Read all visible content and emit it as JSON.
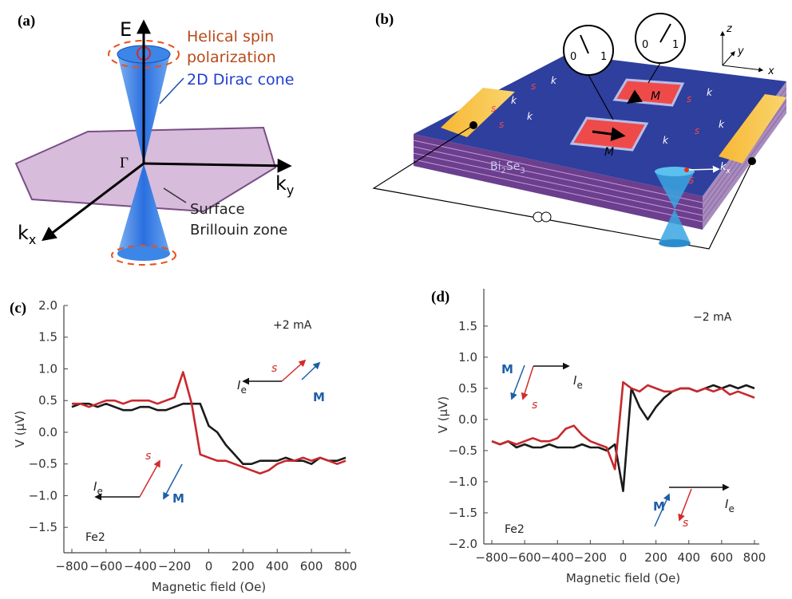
{
  "panel_a": {
    "label": "(a)",
    "energy_axis": "E",
    "spin_label": [
      "Helical spin",
      "polarization"
    ],
    "cone_label": "2D Dirac cone",
    "gamma": "Γ",
    "ky": {
      "text": "k",
      "sub": "y"
    },
    "kx": {
      "text": "k",
      "sub": "x"
    },
    "zone_label": [
      "Surface",
      "Brillouin zone"
    ]
  },
  "panel_b": {
    "label": "(b)",
    "dial_ticks": [
      "0",
      "1",
      "0",
      "1"
    ],
    "axes": [
      "z",
      "y",
      "x"
    ],
    "magnet": [
      "M",
      "M"
    ],
    "material": [
      "Bi",
      "2",
      "Se",
      "3"
    ],
    "k": "k",
    "s": "s",
    "kx": {
      "text": "k",
      "sub": "x"
    }
  },
  "chart_data": [
    {
      "type": "line",
      "panel_label": "(c)",
      "xlabel": "Magnetic field (Oe)",
      "ylabel": "V (μV)",
      "annotations": [
        "+2 mA",
        "Fe2",
        {
          "text": "I",
          "sub": "e"
        },
        "s",
        "M",
        {
          "text": "I",
          "sub": "e"
        },
        "s",
        "M"
      ],
      "x": [
        -800,
        -750,
        -700,
        -650,
        -600,
        -550,
        -500,
        -450,
        -400,
        -350,
        -300,
        -250,
        -200,
        -150,
        -100,
        -50,
        0,
        50,
        100,
        150,
        200,
        250,
        300,
        350,
        400,
        450,
        500,
        550,
        600,
        650,
        700,
        750,
        800
      ],
      "series": [
        {
          "color": "#1a1a1a",
          "values": [
            0.4,
            0.45,
            0.45,
            0.4,
            0.45,
            0.4,
            0.35,
            0.35,
            0.4,
            0.4,
            0.35,
            0.35,
            0.4,
            0.45,
            0.45,
            0.45,
            0.1,
            0.0,
            -0.2,
            -0.35,
            -0.5,
            -0.5,
            -0.45,
            -0.45,
            -0.45,
            -0.4,
            -0.45,
            -0.45,
            -0.5,
            -0.4,
            -0.45,
            -0.45,
            -0.4
          ]
        },
        {
          "color": "#c8282d",
          "values": [
            0.45,
            0.45,
            0.4,
            0.45,
            0.5,
            0.5,
            0.45,
            0.5,
            0.5,
            0.5,
            0.45,
            0.5,
            0.55,
            0.95,
            0.45,
            -0.35,
            -0.4,
            -0.45,
            -0.45,
            -0.5,
            -0.55,
            -0.6,
            -0.65,
            -0.6,
            -0.5,
            -0.45,
            -0.45,
            -0.4,
            -0.45,
            -0.4,
            -0.45,
            -0.5,
            -0.45
          ]
        }
      ],
      "xlim": [
        -800,
        800
      ],
      "xticks": [
        {
          "value": -800,
          "label": "−800"
        },
        {
          "value": -600,
          "label": "−600"
        },
        {
          "value": -400,
          "label": "−400"
        },
        {
          "value": -200,
          "label": "−200"
        },
        0,
        200,
        400,
        600,
        800
      ],
      "ylim": [
        -1.9,
        2.0
      ],
      "yticks": [
        {
          "value": -1.5,
          "label": "−1.5"
        },
        {
          "value": -1.0,
          "label": "−1.0"
        },
        {
          "value": -0.5,
          "label": "−0.5"
        },
        {
          "value": 0,
          "label": "0.0"
        },
        {
          "value": 0.5,
          "label": "0.5"
        },
        {
          "value": 1.0,
          "label": "1.0"
        },
        {
          "value": 1.5,
          "label": "1.5"
        },
        {
          "value": 2.0,
          "label": "2.0"
        }
      ]
    },
    {
      "type": "line",
      "panel_label": "(d)",
      "xlabel": "Magnetic field (Oe)",
      "ylabel": "V (μV)",
      "annotations": [
        "−2 mA",
        "Fe2",
        "M",
        {
          "text": "I",
          "sub": "e"
        },
        "s",
        "M",
        {
          "text": "I",
          "sub": "e"
        },
        "s"
      ],
      "x": [
        -800,
        -750,
        -700,
        -650,
        -600,
        -550,
        -500,
        -450,
        -400,
        -350,
        -300,
        -250,
        -200,
        -150,
        -100,
        -50,
        0,
        50,
        100,
        150,
        200,
        250,
        300,
        350,
        400,
        450,
        500,
        550,
        600,
        650,
        700,
        750,
        800
      ],
      "series": [
        {
          "color": "#1a1a1a",
          "values": [
            -0.35,
            -0.4,
            -0.35,
            -0.45,
            -0.4,
            -0.45,
            -0.45,
            -0.4,
            -0.45,
            -0.45,
            -0.45,
            -0.4,
            -0.45,
            -0.45,
            -0.5,
            -0.4,
            -1.15,
            0.5,
            0.2,
            0.0,
            0.2,
            0.35,
            0.45,
            0.5,
            0.5,
            0.45,
            0.5,
            0.55,
            0.5,
            0.55,
            0.5,
            0.55,
            0.5
          ]
        },
        {
          "color": "#c8282d",
          "values": [
            -0.35,
            -0.4,
            -0.35,
            -0.4,
            -0.35,
            -0.3,
            -0.35,
            -0.35,
            -0.3,
            -0.15,
            -0.1,
            -0.25,
            -0.35,
            -0.4,
            -0.45,
            -0.8,
            0.6,
            0.5,
            0.45,
            0.55,
            0.5,
            0.45,
            0.45,
            0.5,
            0.5,
            0.45,
            0.5,
            0.45,
            0.5,
            0.4,
            0.45,
            0.4,
            0.35
          ]
        }
      ],
      "xlim": [
        -800,
        800
      ],
      "xticks": [
        {
          "value": -800,
          "label": "−800"
        },
        {
          "value": -600,
          "label": "−600"
        },
        {
          "value": -400,
          "label": "−400"
        },
        {
          "value": -200,
          "label": "−200"
        },
        0,
        200,
        400,
        600,
        800
      ],
      "ylim": [
        -2.0,
        2.1
      ],
      "yticks": [
        {
          "value": -2.0,
          "label": "−2.0"
        },
        {
          "value": -1.5,
          "label": "−1.5"
        },
        {
          "value": -1.0,
          "label": "−1.0"
        },
        {
          "value": -0.5,
          "label": "−0.5"
        },
        {
          "value": 0,
          "label": "0.0"
        },
        {
          "value": 0.5,
          "label": "0.5"
        },
        {
          "value": 1.0,
          "label": "1.0"
        },
        {
          "value": 1.5,
          "label": "1.5"
        }
      ]
    }
  ]
}
